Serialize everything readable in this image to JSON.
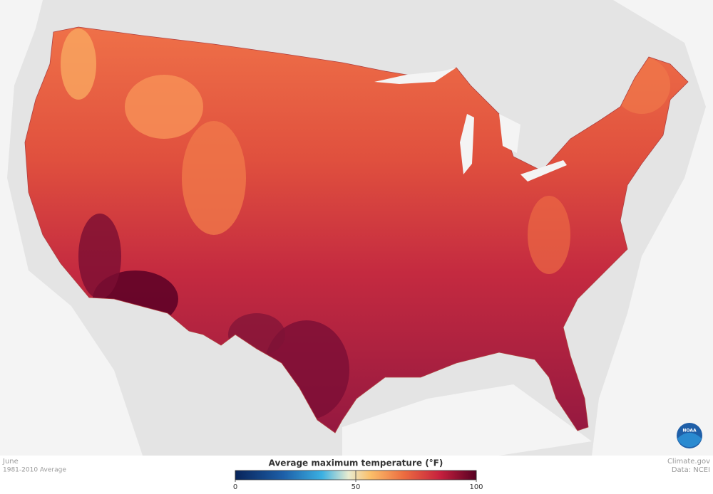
{
  "map": {
    "month": "June",
    "period": "1981-2010 Average",
    "source": "Climate.gov",
    "data_credit": "Data: NCEI",
    "logo": "NOAA"
  },
  "legend": {
    "title": "Average maximum temperature (°F)",
    "lim": [
      0,
      100
    ],
    "ticks": [
      0,
      50,
      100
    ]
  }
}
